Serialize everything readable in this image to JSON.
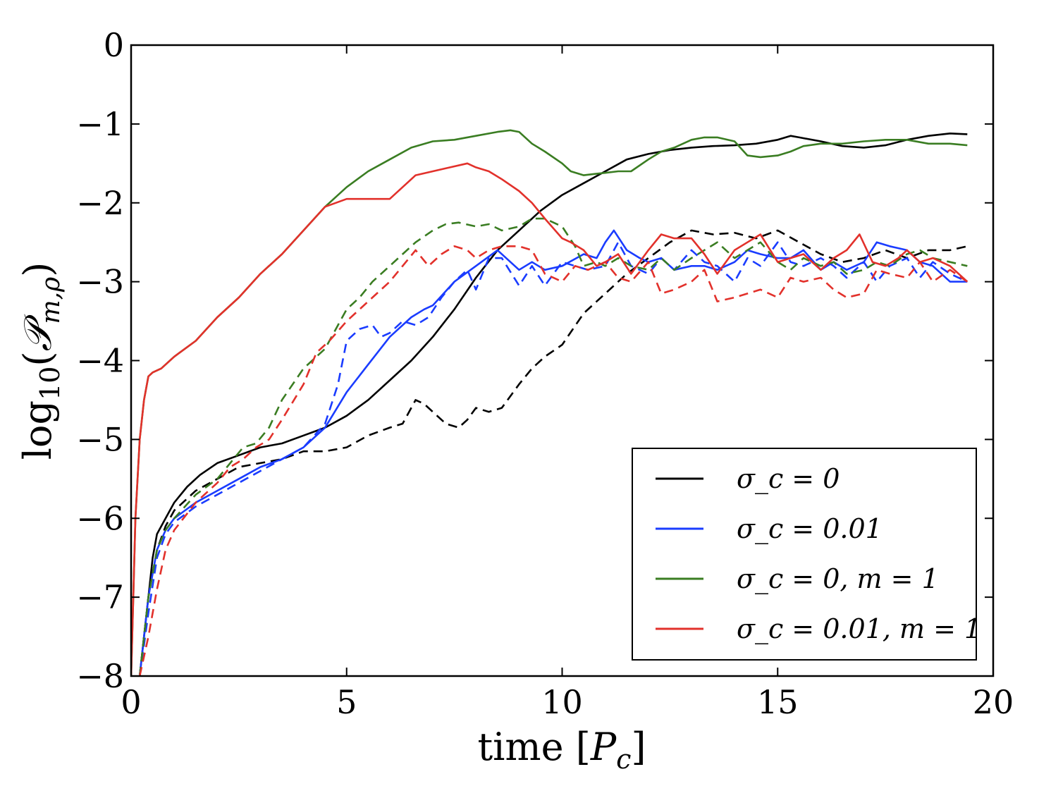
{
  "chart_data": {
    "type": "line",
    "xlabel": "time [P_c]",
    "ylabel": "log10(P_{m,ρ})",
    "xlim": [
      0,
      20
    ],
    "ylim": [
      -8,
      0
    ],
    "xticks": [
      "0",
      "5",
      "10",
      "15",
      "20"
    ],
    "yticks": [
      "0",
      "−1",
      "−2",
      "−3",
      "−4",
      "−5",
      "−6",
      "−7",
      "−8"
    ],
    "legend_position": "lower-right",
    "grid": false,
    "legend": [
      {
        "label": "σ_c = 0",
        "color": "#000000"
      },
      {
        "label": "σ_c = 0.01",
        "color": "#1a3cff"
      },
      {
        "label": "σ_c = 0, m = 1",
        "color": "#3a7d22"
      },
      {
        "label": "σ_c = 0.01, m = 1",
        "color": "#e2312b"
      }
    ],
    "series": [
      {
        "color": "#000000",
        "dash": false,
        "x": [
          0.2,
          0.3,
          0.4,
          0.5,
          0.6,
          0.8,
          1.0,
          1.3,
          1.6,
          2.0,
          2.5,
          3.0,
          3.5,
          4.0,
          4.5,
          5.0,
          5.5,
          6.0,
          6.5,
          7.0,
          7.5,
          8.0,
          8.5,
          9.0,
          9.5,
          10.0,
          10.5,
          11.0,
          11.5,
          12.0,
          12.5,
          13.0,
          13.5,
          14.0,
          14.5,
          15.0,
          15.3,
          15.5,
          16.0,
          16.5,
          17.0,
          17.5,
          18.0,
          18.5,
          19.0,
          19.4
        ],
        "y": [
          -8.0,
          -7.5,
          -7.0,
          -6.5,
          -6.2,
          -6.0,
          -5.8,
          -5.6,
          -5.45,
          -5.3,
          -5.2,
          -5.1,
          -5.05,
          -4.95,
          -4.85,
          -4.7,
          -4.5,
          -4.25,
          -4.0,
          -3.7,
          -3.35,
          -2.95,
          -2.6,
          -2.35,
          -2.1,
          -1.9,
          -1.75,
          -1.6,
          -1.45,
          -1.38,
          -1.33,
          -1.3,
          -1.28,
          -1.27,
          -1.25,
          -1.2,
          -1.15,
          -1.17,
          -1.22,
          -1.28,
          -1.3,
          -1.27,
          -1.2,
          -1.15,
          -1.12,
          -1.13
        ]
      },
      {
        "color": "#000000",
        "dash": true,
        "x": [
          0.2,
          0.4,
          0.6,
          0.8,
          1.0,
          1.5,
          2.0,
          2.5,
          3.0,
          3.5,
          4.0,
          4.5,
          5.0,
          5.5,
          6.0,
          6.3,
          6.6,
          6.8,
          7.0,
          7.3,
          7.6,
          7.8,
          8.0,
          8.3,
          8.6,
          9.0,
          9.3,
          9.6,
          10.0,
          10.5,
          11.0,
          11.5,
          12.0,
          12.5,
          13.0,
          13.5,
          14.0,
          14.5,
          15.0,
          15.5,
          16.0,
          16.5,
          17.0,
          17.5,
          18.0,
          18.5,
          19.0,
          19.4
        ],
        "y": [
          -8.0,
          -7.0,
          -6.4,
          -6.1,
          -5.9,
          -5.65,
          -5.5,
          -5.35,
          -5.3,
          -5.25,
          -5.15,
          -5.15,
          -5.1,
          -4.95,
          -4.85,
          -4.8,
          -4.5,
          -4.55,
          -4.65,
          -4.8,
          -4.85,
          -4.75,
          -4.6,
          -4.65,
          -4.6,
          -4.3,
          -4.1,
          -3.95,
          -3.8,
          -3.4,
          -3.15,
          -2.9,
          -2.7,
          -2.5,
          -2.35,
          -2.4,
          -2.38,
          -2.45,
          -2.35,
          -2.5,
          -2.65,
          -2.75,
          -2.7,
          -2.6,
          -2.7,
          -2.6,
          -2.6,
          -2.55
        ]
      },
      {
        "color": "#1a3cff",
        "dash": false,
        "x": [
          0.2,
          0.4,
          0.6,
          0.8,
          1.0,
          1.5,
          2.0,
          2.5,
          3.0,
          3.5,
          4.0,
          4.5,
          5.0,
          5.5,
          6.0,
          6.5,
          6.8,
          7.0,
          7.5,
          8.0,
          8.5,
          9.0,
          9.3,
          9.6,
          10.0,
          10.5,
          10.8,
          11.0,
          11.2,
          11.5,
          11.8,
          12.0,
          12.3,
          12.6,
          13.0,
          13.3,
          13.6,
          14.0,
          14.3,
          14.6,
          15.0,
          15.3,
          15.6,
          16.0,
          16.3,
          16.6,
          17.0,
          17.3,
          17.6,
          18.0,
          18.3,
          18.6,
          19.0,
          19.4
        ],
        "y": [
          -8.0,
          -7.0,
          -6.4,
          -6.15,
          -6.0,
          -5.8,
          -5.65,
          -5.5,
          -5.35,
          -5.25,
          -5.1,
          -4.85,
          -4.4,
          -4.05,
          -3.7,
          -3.45,
          -3.35,
          -3.3,
          -3.0,
          -2.8,
          -2.6,
          -2.85,
          -2.75,
          -2.85,
          -2.8,
          -2.65,
          -2.7,
          -2.5,
          -2.35,
          -2.6,
          -2.7,
          -2.75,
          -2.7,
          -2.85,
          -2.8,
          -2.8,
          -2.85,
          -2.75,
          -2.6,
          -2.65,
          -2.7,
          -2.7,
          -2.6,
          -2.85,
          -2.75,
          -2.85,
          -2.75,
          -2.5,
          -2.55,
          -2.6,
          -2.75,
          -2.8,
          -3.0,
          -3.0
        ]
      },
      {
        "color": "#1a3cff",
        "dash": true,
        "x": [
          0.2,
          0.4,
          0.6,
          0.8,
          1.0,
          1.5,
          2.0,
          2.5,
          3.0,
          3.5,
          4.0,
          4.5,
          4.8,
          5.0,
          5.3,
          5.6,
          5.8,
          6.0,
          6.3,
          6.6,
          6.9,
          7.2,
          7.5,
          7.8,
          8.0,
          8.3,
          8.6,
          9.0,
          9.3,
          9.6,
          10.0,
          10.3,
          10.6,
          11.0,
          11.3,
          11.6,
          12.0,
          12.3,
          12.6,
          13.0,
          13.3,
          13.6,
          14.0,
          14.3,
          14.6,
          15.0,
          15.3,
          15.6,
          16.0,
          16.3,
          16.6,
          17.0,
          17.3,
          17.6,
          18.0,
          18.3,
          18.6,
          19.0,
          19.4
        ],
        "y": [
          -8.0,
          -7.2,
          -6.5,
          -6.2,
          -6.05,
          -5.85,
          -5.7,
          -5.55,
          -5.4,
          -5.25,
          -5.1,
          -4.8,
          -4.3,
          -3.75,
          -3.6,
          -3.55,
          -3.7,
          -3.65,
          -3.5,
          -3.55,
          -3.45,
          -3.2,
          -3.0,
          -2.85,
          -3.1,
          -2.7,
          -2.7,
          -3.05,
          -2.8,
          -3.05,
          -2.75,
          -2.8,
          -2.85,
          -2.8,
          -2.5,
          -2.8,
          -2.9,
          -2.7,
          -2.85,
          -2.6,
          -2.75,
          -2.8,
          -3.0,
          -2.7,
          -2.8,
          -2.5,
          -2.75,
          -2.8,
          -2.7,
          -2.8,
          -2.95,
          -2.75,
          -3.0,
          -2.8,
          -2.7,
          -2.95,
          -2.75,
          -2.9,
          -3.0
        ]
      },
      {
        "color": "#3a7d22",
        "dash": false,
        "x": [
          0.0,
          0.05,
          0.1,
          0.2,
          0.3,
          0.4,
          0.5,
          0.7,
          1.0,
          1.5,
          2.0,
          2.5,
          3.0,
          3.5,
          4.0,
          4.5,
          5.0,
          5.5,
          6.0,
          6.5,
          7.0,
          7.5,
          8.0,
          8.5,
          8.8,
          9.0,
          9.3,
          9.6,
          10.0,
          10.2,
          10.5,
          10.8,
          11.0,
          11.3,
          11.6,
          12.0,
          12.3,
          12.6,
          13.0,
          13.3,
          13.6,
          14.0,
          14.3,
          14.6,
          15.0,
          15.3,
          15.6,
          16.0,
          16.5,
          17.0,
          17.5,
          18.0,
          18.5,
          19.0,
          19.4
        ],
        "y": [
          -8.0,
          -7.0,
          -6.0,
          -5.0,
          -4.5,
          -4.2,
          -4.15,
          -4.1,
          -3.95,
          -3.75,
          -3.45,
          -3.2,
          -2.9,
          -2.65,
          -2.35,
          -2.05,
          -1.8,
          -1.6,
          -1.45,
          -1.3,
          -1.22,
          -1.2,
          -1.15,
          -1.1,
          -1.08,
          -1.1,
          -1.25,
          -1.35,
          -1.5,
          -1.6,
          -1.65,
          -1.63,
          -1.62,
          -1.6,
          -1.6,
          -1.45,
          -1.35,
          -1.3,
          -1.2,
          -1.17,
          -1.17,
          -1.22,
          -1.4,
          -1.42,
          -1.4,
          -1.35,
          -1.28,
          -1.25,
          -1.25,
          -1.22,
          -1.2,
          -1.2,
          -1.25,
          -1.25,
          -1.27
        ]
      },
      {
        "color": "#3a7d22",
        "dash": true,
        "x": [
          0.2,
          0.4,
          0.6,
          0.8,
          1.0,
          1.5,
          2.0,
          2.3,
          2.6,
          2.9,
          3.2,
          3.5,
          4.0,
          4.5,
          4.8,
          5.0,
          5.3,
          5.6,
          6.0,
          6.3,
          6.6,
          7.0,
          7.3,
          7.6,
          8.0,
          8.3,
          8.6,
          9.0,
          9.3,
          9.6,
          10.0,
          10.3,
          10.5,
          10.8,
          11.0,
          11.3,
          11.6,
          12.0,
          12.3,
          12.6,
          13.0,
          13.3,
          13.6,
          14.0,
          14.3,
          14.6,
          15.0,
          15.3,
          15.6,
          16.0,
          16.3,
          16.6,
          17.0,
          17.3,
          17.6,
          18.0,
          18.3,
          18.6,
          19.0,
          19.4
        ],
        "y": [
          -8.0,
          -7.0,
          -6.4,
          -6.15,
          -6.0,
          -5.7,
          -5.5,
          -5.3,
          -5.1,
          -5.05,
          -4.85,
          -4.5,
          -4.1,
          -3.85,
          -3.55,
          -3.35,
          -3.2,
          -3.0,
          -2.8,
          -2.65,
          -2.5,
          -2.35,
          -2.27,
          -2.25,
          -2.3,
          -2.27,
          -2.35,
          -2.3,
          -2.2,
          -2.2,
          -2.3,
          -2.55,
          -2.8,
          -2.75,
          -2.8,
          -2.7,
          -2.8,
          -2.85,
          -2.7,
          -2.85,
          -2.7,
          -2.6,
          -2.5,
          -2.7,
          -2.6,
          -2.5,
          -2.75,
          -2.85,
          -2.7,
          -2.8,
          -2.75,
          -2.9,
          -2.85,
          -2.75,
          -2.8,
          -2.65,
          -2.6,
          -2.7,
          -2.75,
          -2.8
        ]
      },
      {
        "color": "#e2312b",
        "dash": false,
        "x": [
          0.0,
          0.05,
          0.1,
          0.2,
          0.3,
          0.4,
          0.5,
          0.7,
          1.0,
          1.5,
          2.0,
          2.5,
          3.0,
          3.5,
          4.0,
          4.5,
          5.0,
          5.5,
          6.0,
          6.3,
          6.6,
          7.0,
          7.4,
          7.8,
          8.0,
          8.3,
          8.6,
          9.0,
          9.3,
          9.6,
          10.0,
          10.2,
          10.5,
          10.8,
          11.0,
          11.3,
          11.6,
          12.0,
          12.3,
          12.6,
          13.0,
          13.3,
          13.6,
          14.0,
          14.3,
          14.6,
          15.0,
          15.3,
          15.6,
          16.0,
          16.3,
          16.6,
          16.9,
          17.2,
          17.5,
          17.8,
          18.0,
          18.3,
          18.6,
          19.0,
          19.4
        ],
        "y": [
          -8.0,
          -7.0,
          -6.0,
          -5.0,
          -4.5,
          -4.2,
          -4.15,
          -4.1,
          -3.95,
          -3.75,
          -3.45,
          -3.2,
          -2.9,
          -2.65,
          -2.35,
          -2.05,
          -1.95,
          -1.95,
          -1.95,
          -1.8,
          -1.65,
          -1.6,
          -1.55,
          -1.5,
          -1.55,
          -1.6,
          -1.7,
          -1.85,
          -2.0,
          -2.2,
          -2.45,
          -2.5,
          -2.6,
          -2.8,
          -2.75,
          -2.65,
          -2.9,
          -2.6,
          -2.4,
          -2.45,
          -2.45,
          -2.65,
          -2.9,
          -2.6,
          -2.5,
          -2.4,
          -2.75,
          -2.7,
          -2.65,
          -2.85,
          -2.7,
          -2.6,
          -2.4,
          -2.75,
          -2.8,
          -2.7,
          -2.6,
          -2.75,
          -2.7,
          -2.8,
          -3.0
        ]
      },
      {
        "color": "#e2312b",
        "dash": true,
        "x": [
          0.2,
          0.4,
          0.6,
          0.8,
          1.0,
          1.5,
          2.0,
          2.3,
          2.6,
          2.9,
          3.2,
          3.5,
          4.0,
          4.3,
          4.6,
          5.0,
          5.3,
          5.6,
          6.0,
          6.3,
          6.6,
          6.9,
          7.2,
          7.5,
          7.8,
          8.0,
          8.3,
          8.6,
          9.0,
          9.3,
          9.6,
          10.0,
          10.3,
          10.6,
          11.0,
          11.3,
          11.6,
          12.0,
          12.3,
          12.6,
          13.0,
          13.3,
          13.6,
          14.0,
          14.3,
          14.6,
          15.0,
          15.3,
          15.6,
          16.0,
          16.3,
          16.6,
          17.0,
          17.3,
          17.6,
          18.0,
          18.3,
          18.6,
          19.0,
          19.4
        ],
        "y": [
          -8.0,
          -7.5,
          -6.9,
          -6.4,
          -6.15,
          -5.8,
          -5.55,
          -5.35,
          -5.25,
          -5.1,
          -5.0,
          -4.75,
          -4.3,
          -3.9,
          -3.75,
          -3.5,
          -3.35,
          -3.2,
          -3.0,
          -2.8,
          -2.6,
          -2.8,
          -2.65,
          -2.55,
          -2.6,
          -2.7,
          -2.6,
          -2.55,
          -2.55,
          -2.6,
          -2.9,
          -3.0,
          -2.8,
          -2.85,
          -2.75,
          -2.95,
          -3.0,
          -2.75,
          -3.15,
          -3.1,
          -3.0,
          -2.85,
          -3.25,
          -3.2,
          -3.15,
          -3.1,
          -3.2,
          -2.95,
          -3.0,
          -2.95,
          -3.1,
          -3.2,
          -3.15,
          -2.85,
          -2.9,
          -2.95,
          -2.75,
          -3.0,
          -2.85,
          -3.0
        ]
      }
    ]
  }
}
